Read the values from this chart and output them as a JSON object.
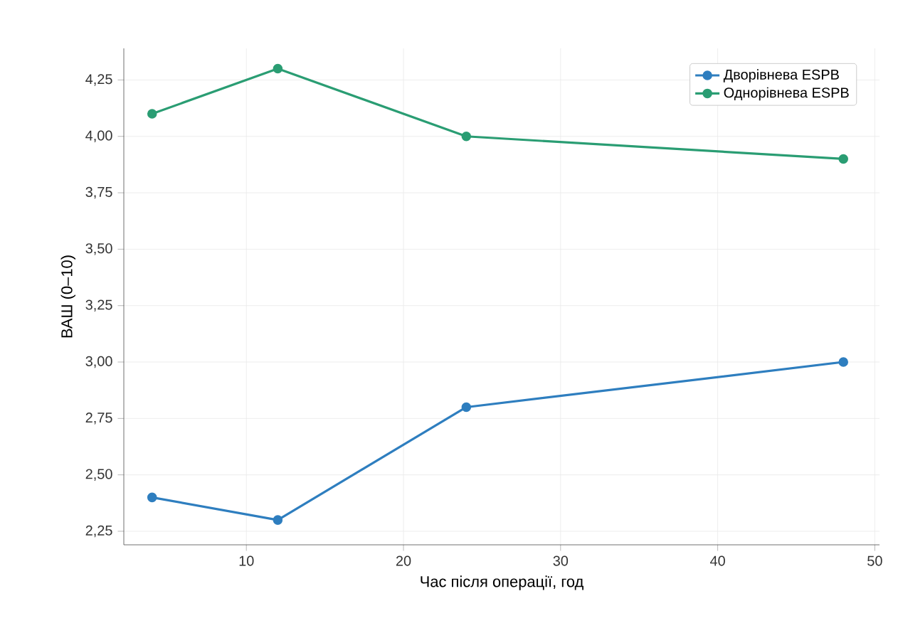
{
  "chart_data": {
    "type": "line",
    "xlabel": "Час після операції, год",
    "ylabel": "ВАШ (0–10)",
    "x": [
      4,
      12,
      24,
      48
    ],
    "series": [
      {
        "name": "Дворівнева ESPB",
        "color": "#2e7ebf",
        "values": [
          2.4,
          2.3,
          2.8,
          3.0
        ]
      },
      {
        "name": "Однорівнева ESPB",
        "color": "#2a9d73",
        "values": [
          4.1,
          4.3,
          4.0,
          3.9
        ]
      }
    ],
    "xlim": [
      2.2,
      50.3
    ],
    "ylim": [
      2.19,
      4.39
    ],
    "xticks": [
      10,
      20,
      30,
      40,
      50
    ],
    "yticks": [
      {
        "value": 2.25,
        "label": "2,25"
      },
      {
        "value": 2.5,
        "label": "2,50"
      },
      {
        "value": 2.75,
        "label": "2,75"
      },
      {
        "value": 3.0,
        "label": "3,00"
      },
      {
        "value": 3.25,
        "label": "3,25"
      },
      {
        "value": 3.5,
        "label": "3,50"
      },
      {
        "value": 3.75,
        "label": "3,75"
      },
      {
        "value": 4.0,
        "label": "4,00"
      },
      {
        "value": 4.25,
        "label": "4,25"
      }
    ],
    "grid": true,
    "legend": "top right",
    "marker": "circle",
    "line_style": "solid"
  }
}
